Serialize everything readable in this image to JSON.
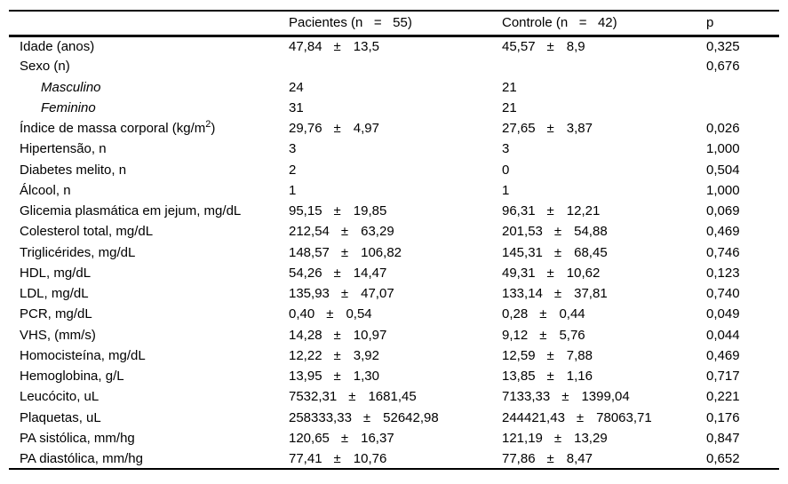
{
  "table": {
    "header": {
      "variable": "",
      "pacientes": "Pacientes (n   =   55)",
      "controle": "Controle (n   =   42)",
      "p": "p"
    },
    "pm_symbol": "±",
    "rows": [
      {
        "label": "Idade (anos)",
        "pacientes": {
          "mean": "47,84",
          "sd": "13,5"
        },
        "controle": {
          "mean": "45,57",
          "sd": "8,9"
        },
        "p": "0,325"
      },
      {
        "label": "Sexo (n)",
        "p": "0,676"
      },
      {
        "label": "Masculino",
        "style": "sub",
        "pacientes": {
          "mean": "24"
        },
        "controle": {
          "mean": "21"
        }
      },
      {
        "label": "Feminino",
        "style": "sub",
        "pacientes": {
          "mean": "31"
        },
        "controle": {
          "mean": "21"
        }
      },
      {
        "label": "Índice de massa corporal (kg/m",
        "label_sup": "2",
        "label_after": ")",
        "pacientes": {
          "mean": "29,76",
          "sd": "4,97"
        },
        "controle": {
          "mean": "27,65",
          "sd": "3,87"
        },
        "p": "0,026"
      },
      {
        "label": "Hipertensão, n",
        "pacientes": {
          "mean": "3"
        },
        "controle": {
          "mean": "3"
        },
        "p": "1,000"
      },
      {
        "label": "Diabetes melito, n",
        "pacientes": {
          "mean": "2"
        },
        "controle": {
          "mean": "0"
        },
        "p": "0,504"
      },
      {
        "label": "Álcool, n",
        "pacientes": {
          "mean": "1"
        },
        "controle": {
          "mean": "1"
        },
        "p": "1,000"
      },
      {
        "label": "Glicemia plasmática em jejum, mg/dL",
        "pacientes": {
          "mean": "95,15",
          "sd": "19,85"
        },
        "controle": {
          "mean": "96,31",
          "sd": "12,21"
        },
        "p": "0,069"
      },
      {
        "label": "Colesterol total, mg/dL",
        "pacientes": {
          "mean": "212,54",
          "sd": "63,29"
        },
        "controle": {
          "mean": "201,53",
          "sd": "54,88"
        },
        "p": "0,469"
      },
      {
        "label": "Triglicérides, mg/dL",
        "pacientes": {
          "mean": "148,57",
          "sd": "106,82"
        },
        "controle": {
          "mean": "145,31",
          "sd": "68,45"
        },
        "p": "0,746"
      },
      {
        "label": "HDL, mg/dL",
        "pacientes": {
          "mean": "54,26",
          "sd": "14,47"
        },
        "controle": {
          "mean": "49,31",
          "sd": "10,62"
        },
        "p": "0,123"
      },
      {
        "label": "LDL, mg/dL",
        "pacientes": {
          "mean": "135,93",
          "sd": "47,07"
        },
        "controle": {
          "mean": "133,14",
          "sd": "37,81"
        },
        "p": "0,740"
      },
      {
        "label": "PCR, mg/dL",
        "pacientes": {
          "mean": "0,40",
          "sd": "0,54"
        },
        "controle": {
          "mean": "0,28",
          "sd": "0,44"
        },
        "p": "0,049"
      },
      {
        "label": "VHS, (mm/s)",
        "pacientes": {
          "mean": "14,28",
          "sd": "10,97"
        },
        "controle": {
          "mean": "9,12",
          "sd": "5,76"
        },
        "p": "0,044"
      },
      {
        "label": "Homocisteína, mg/dL",
        "pacientes": {
          "mean": "12,22",
          "sd": "3,92"
        },
        "controle": {
          "mean": "12,59",
          "sd": "7,88"
        },
        "p": "0,469"
      },
      {
        "label": "Hemoglobina, g/L",
        "pacientes": {
          "mean": "13,95",
          "sd": "1,30"
        },
        "controle": {
          "mean": "13,85",
          "sd": "1,16"
        },
        "p": "0,717"
      },
      {
        "label": "Leucócito, uL",
        "pacientes": {
          "mean": "7532,31",
          "sd": "1681,45"
        },
        "controle": {
          "mean": "7133,33",
          "sd": "1399,04"
        },
        "p": "0,221"
      },
      {
        "label": "Plaquetas, uL",
        "pacientes": {
          "mean": "258333,33",
          "sd": "52642,98"
        },
        "controle": {
          "mean": "244421,43",
          "sd": "78063,71"
        },
        "p": "0,176"
      },
      {
        "label": "PA sistólica, mm/hg",
        "pacientes": {
          "mean": "120,65",
          "sd": "16,37"
        },
        "controle": {
          "mean": "121,19",
          "sd": "13,29"
        },
        "p": "0,847"
      },
      {
        "label": "PA diastólica, mm/hg",
        "pacientes": {
          "mean": "77,41",
          "sd": "10,76"
        },
        "controle": {
          "mean": "77,86",
          "sd": "8,47"
        },
        "p": "0,652"
      }
    ]
  }
}
